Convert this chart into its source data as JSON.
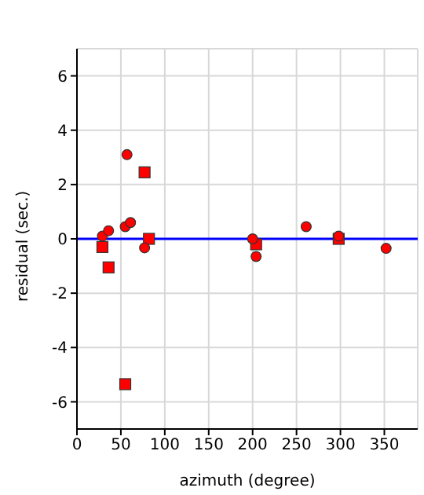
{
  "chart_data": {
    "type": "scatter",
    "xlabel": "azimuth (degree)",
    "ylabel": "residual (sec.)",
    "xlim": [
      0,
      388
    ],
    "xticks": [
      0,
      50,
      100,
      150,
      200,
      250,
      300,
      350
    ],
    "ylim": [
      -7,
      7
    ],
    "yticks": [
      -6,
      -4,
      -2,
      0,
      2,
      4,
      6
    ],
    "grid": true,
    "series": [
      {
        "color": "#ff0000",
        "marker": "circle",
        "x": [
          29,
          36,
          57,
          55,
          61,
          77,
          200,
          204,
          261,
          298,
          352
        ],
        "values": [
          0.1,
          0.3,
          3.1,
          0.45,
          0.6,
          -0.33,
          0,
          -0.65,
          0.45,
          0.1,
          -0.35
        ]
      },
      {
        "color": "#ff0000",
        "marker": "square",
        "x": [
          29,
          36,
          77,
          82,
          55,
          204,
          298
        ],
        "values": [
          -0.3,
          -1.05,
          2.45,
          0,
          -5.35,
          -0.2,
          0
        ]
      }
    ],
    "ref_lines": [
      {
        "axis": "y",
        "value": 0,
        "color": "#0000ff"
      }
    ]
  }
}
